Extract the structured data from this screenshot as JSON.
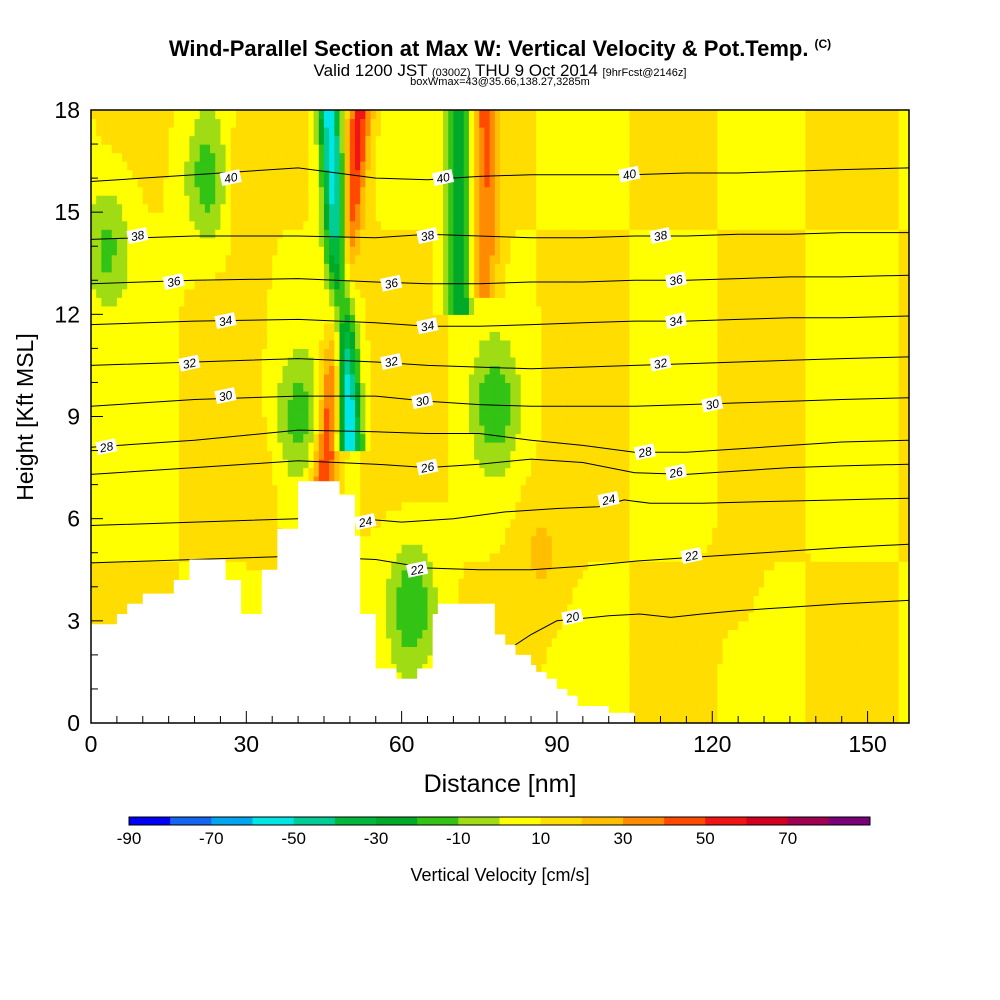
{
  "title": {
    "main": "Wind-Parallel Section at Max W: Vertical Velocity & Pot.Temp.",
    "copyright": "(C)",
    "valid_main": "Valid 1200 JST",
    "valid_utc": "(0300Z)",
    "valid_date": "THU 9 Oct 2014",
    "forecast": "[9hrFcst@2146z]",
    "box": "boxWmax=43@35.66,138.27,3285m"
  },
  "chart_data": {
    "type": "heatmap",
    "xlabel": "Distance [nm]",
    "ylabel": "Height [Kft MSL]",
    "xlim": [
      0,
      158
    ],
    "ylim": [
      0,
      18
    ],
    "x_ticks": [
      0,
      30,
      60,
      90,
      120,
      150
    ],
    "y_ticks": [
      0,
      3,
      6,
      9,
      12,
      15,
      18
    ],
    "colorbar": {
      "label": "Vertical Velocity [cm/s]",
      "tick_labels": [
        "-90",
        "-70",
        "-50",
        "-30",
        "-10",
        "10",
        "30",
        "50",
        "70"
      ],
      "tick_values": [
        -90,
        -70,
        -50,
        -30,
        -10,
        10,
        30,
        50,
        70
      ],
      "levels": [
        -90,
        -80,
        -70,
        -60,
        -50,
        -40,
        -30,
        -20,
        -10,
        0,
        10,
        20,
        30,
        40,
        50,
        60,
        70,
        80
      ],
      "colors": [
        "#0000f5",
        "#1466f0",
        "#00a5f0",
        "#00e6e6",
        "#00cd96",
        "#00b93c",
        "#00aa28",
        "#32c314",
        "#a0dc14",
        "#ffff00",
        "#ffdd00",
        "#ffbe00",
        "#ff8c00",
        "#ff4a00",
        "#f01414",
        "#d2001e",
        "#a00050",
        "#780078"
      ]
    },
    "terrain": {
      "x": [
        0,
        3,
        5,
        7,
        10,
        16,
        19,
        22,
        26,
        29,
        32,
        33,
        36,
        38,
        40,
        45,
        48,
        51,
        52,
        55,
        58,
        59,
        61,
        63,
        64,
        66,
        67,
        70,
        71,
        75,
        78,
        80,
        81,
        82,
        84,
        85,
        86,
        88,
        90,
        92,
        94,
        96,
        99,
        100,
        104,
        105,
        110,
        120,
        130,
        140,
        150,
        158
      ],
      "height_kft": [
        2.9,
        2.9,
        3.2,
        3.5,
        3.8,
        4.2,
        4.8,
        4.8,
        4.2,
        3.2,
        3.2,
        4.5,
        5.7,
        5.7,
        7.1,
        7.1,
        6.7,
        5.5,
        3.2,
        1.6,
        1.6,
        1.3,
        1.3,
        1.6,
        1.6,
        3.2,
        3.5,
        3.5,
        3.5,
        3.5,
        2.6,
        2.3,
        2.3,
        2.0,
        2.0,
        1.7,
        1.5,
        1.3,
        1.0,
        0.8,
        0.5,
        0.5,
        0.5,
        0.3,
        0.3,
        0.0,
        0.0,
        0.0,
        0.0,
        0.0,
        0.0,
        0.0
      ]
    },
    "features": [
      {
        "name": "updraft",
        "x_top": 52,
        "x_bottom": 45,
        "y_top": 18,
        "y_bottom": 7.3,
        "peak": 55
      },
      {
        "name": "downdraft",
        "x_top": 46,
        "x_bottom": 50,
        "y_top": 18,
        "y_bottom": 8.6,
        "peak": -60
      },
      {
        "name": "updraft",
        "x": 76,
        "y_top": 18,
        "y_bottom": 13,
        "peak": 40
      },
      {
        "name": "downdraft",
        "x": 71,
        "y_top": 18,
        "y_bottom": 12.5,
        "peak": -30
      },
      {
        "name": "downdraft",
        "x": 23,
        "y": 16,
        "peak": -18
      },
      {
        "name": "updraft",
        "x": 28,
        "y": 16.2,
        "peak": 24
      },
      {
        "name": "downdraft",
        "x": 3,
        "y": 14,
        "peak": -12
      },
      {
        "name": "updraft",
        "x": 87,
        "y": 5,
        "peak": 22
      },
      {
        "name": "downdraft",
        "x": 62,
        "y": 3.5,
        "peak": -18
      },
      {
        "name": "downdraft",
        "x": 78,
        "y": 9.3,
        "peak": -15
      },
      {
        "name": "downdraft",
        "x": 40,
        "y": 9,
        "peak": -12
      },
      {
        "name": "updraft",
        "x": 33,
        "y": 7.5,
        "peak": 14
      },
      {
        "name": "updraft",
        "x": 126,
        "y": 3.5,
        "peak": 12
      }
    ],
    "contours": [
      {
        "label": "20",
        "x": [
          80,
          85,
          90,
          97,
          100,
          106,
          112,
          118,
          125,
          135,
          145,
          158
        ],
        "y": [
          2.1,
          2.6,
          3.0,
          3.1,
          3.15,
          3.2,
          3.1,
          3.2,
          3.3,
          3.4,
          3.5,
          3.6
        ]
      },
      {
        "label": "22",
        "x": [
          0,
          20,
          40,
          55,
          65,
          75,
          85,
          95,
          105,
          115,
          125,
          135,
          145,
          158
        ],
        "y": [
          4.7,
          4.8,
          4.9,
          4.8,
          4.55,
          4.5,
          4.5,
          4.6,
          4.75,
          4.85,
          4.95,
          5.05,
          5.15,
          5.25
        ]
      },
      {
        "label": "24",
        "x": [
          0,
          20,
          40,
          52,
          60,
          70,
          80,
          90,
          98,
          103,
          108,
          118,
          130,
          145,
          158
        ],
        "y": [
          5.8,
          5.9,
          6.0,
          6.0,
          5.9,
          6.0,
          6.2,
          6.3,
          6.35,
          6.55,
          6.45,
          6.45,
          6.5,
          6.55,
          6.6
        ]
      },
      {
        "label": "26",
        "x": [
          0,
          20,
          40,
          55,
          65,
          75,
          85,
          95,
          105,
          115,
          125,
          135,
          145,
          158
        ],
        "y": [
          7.3,
          7.5,
          7.7,
          7.6,
          7.5,
          7.6,
          7.75,
          7.65,
          7.35,
          7.3,
          7.4,
          7.5,
          7.55,
          7.6
        ]
      },
      {
        "label": "28",
        "x": [
          0,
          20,
          40,
          55,
          65,
          75,
          85,
          95,
          105,
          115,
          125,
          135,
          145,
          158
        ],
        "y": [
          8.1,
          8.3,
          8.6,
          8.55,
          8.5,
          8.5,
          8.3,
          8.15,
          7.95,
          7.95,
          8.05,
          8.15,
          8.25,
          8.3
        ]
      },
      {
        "label": "30",
        "x": [
          0,
          20,
          40,
          55,
          65,
          75,
          85,
          95,
          105,
          115,
          125,
          135,
          145,
          158
        ],
        "y": [
          9.3,
          9.5,
          9.6,
          9.6,
          9.45,
          9.35,
          9.3,
          9.3,
          9.3,
          9.35,
          9.4,
          9.45,
          9.5,
          9.55
        ]
      },
      {
        "label": "32",
        "x": [
          0,
          20,
          40,
          55,
          65,
          75,
          85,
          95,
          105,
          115,
          125,
          135,
          145,
          158
        ],
        "y": [
          10.5,
          10.6,
          10.7,
          10.6,
          10.5,
          10.45,
          10.4,
          10.45,
          10.5,
          10.55,
          10.6,
          10.65,
          10.7,
          10.75
        ]
      },
      {
        "label": "34",
        "x": [
          0,
          20,
          40,
          55,
          65,
          75,
          85,
          95,
          105,
          115,
          125,
          135,
          145,
          158
        ],
        "y": [
          11.7,
          11.8,
          11.85,
          11.75,
          11.65,
          11.65,
          11.7,
          11.75,
          11.8,
          11.8,
          11.85,
          11.9,
          11.9,
          11.95
        ]
      },
      {
        "label": "36",
        "x": [
          0,
          20,
          40,
          55,
          65,
          75,
          85,
          95,
          105,
          115,
          125,
          135,
          145,
          158
        ],
        "y": [
          12.9,
          13.0,
          13.05,
          12.95,
          12.9,
          12.9,
          12.95,
          12.95,
          13.0,
          13.0,
          13.05,
          13.1,
          13.1,
          13.15
        ]
      },
      {
        "label": "38",
        "x": [
          0,
          20,
          40,
          55,
          65,
          75,
          85,
          95,
          105,
          115,
          125,
          135,
          145,
          158
        ],
        "y": [
          14.2,
          14.3,
          14.3,
          14.25,
          14.35,
          14.3,
          14.25,
          14.25,
          14.3,
          14.3,
          14.35,
          14.35,
          14.4,
          14.4
        ]
      },
      {
        "label": "40",
        "x": [
          0,
          20,
          40,
          55,
          65,
          75,
          85,
          95,
          105,
          115,
          125,
          135,
          145,
          158
        ],
        "y": [
          15.9,
          16.1,
          16.3,
          16.0,
          15.95,
          16.05,
          16.1,
          16.1,
          16.1,
          16.15,
          16.15,
          16.2,
          16.25,
          16.3
        ]
      }
    ],
    "contour_labels": [
      {
        "text": "20",
        "x": 93,
        "y": 3.1
      },
      {
        "text": "22",
        "x": 63,
        "y": 4.5
      },
      {
        "text": "22",
        "x": 116,
        "y": 4.9
      },
      {
        "text": "24",
        "x": 53,
        "y": 5.9
      },
      {
        "text": "24",
        "x": 100,
        "y": 6.55
      },
      {
        "text": "26",
        "x": 65,
        "y": 7.5
      },
      {
        "text": "26",
        "x": 113,
        "y": 7.35
      },
      {
        "text": "28",
        "x": 3,
        "y": 8.1
      },
      {
        "text": "28",
        "x": 107,
        "y": 7.95
      },
      {
        "text": "30",
        "x": 26,
        "y": 9.6
      },
      {
        "text": "30",
        "x": 64,
        "y": 9.45
      },
      {
        "text": "30",
        "x": 120,
        "y": 9.35
      },
      {
        "text": "32",
        "x": 19,
        "y": 10.55
      },
      {
        "text": "32",
        "x": 58,
        "y": 10.6
      },
      {
        "text": "32",
        "x": 110,
        "y": 10.55
      },
      {
        "text": "34",
        "x": 26,
        "y": 11.8
      },
      {
        "text": "34",
        "x": 65,
        "y": 11.65
      },
      {
        "text": "34",
        "x": 113,
        "y": 11.8
      },
      {
        "text": "36",
        "x": 16,
        "y": 12.95
      },
      {
        "text": "36",
        "x": 58,
        "y": 12.9
      },
      {
        "text": "36",
        "x": 113,
        "y": 13.0
      },
      {
        "text": "38",
        "x": 9,
        "y": 14.3
      },
      {
        "text": "38",
        "x": 65,
        "y": 14.3
      },
      {
        "text": "38",
        "x": 110,
        "y": 14.3
      },
      {
        "text": "40",
        "x": 27,
        "y": 16.0
      },
      {
        "text": "40",
        "x": 68,
        "y": 16.0
      },
      {
        "text": "40",
        "x": 104,
        "y": 16.1
      }
    ]
  }
}
